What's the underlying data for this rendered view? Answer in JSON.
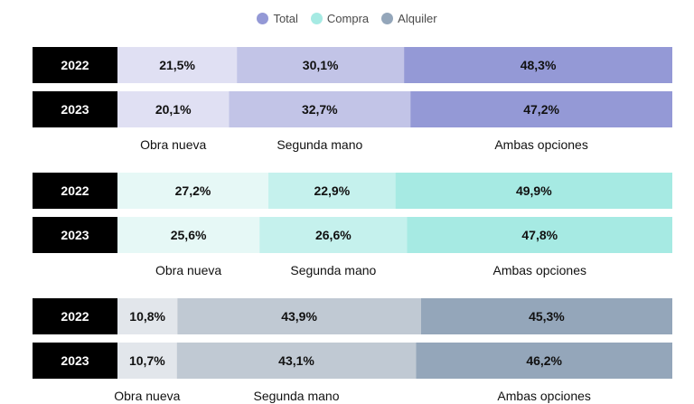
{
  "legend": [
    {
      "label": "Total",
      "color": "#9499d6"
    },
    {
      "label": "Compra",
      "color": "#a6eae3"
    },
    {
      "label": "Alquiler",
      "color": "#94a6ba"
    }
  ],
  "chart_data": [
    {
      "type": "bar",
      "stacked": true,
      "orientation": "horizontal",
      "group": "Total",
      "categories": [
        "2022",
        "2023"
      ],
      "series": [
        {
          "name": "Obra nueva",
          "values": [
            21.5,
            20.1
          ],
          "labels": [
            "21,5%",
            "20,1%"
          ],
          "color": "#e0e0f3"
        },
        {
          "name": "Segunda mano",
          "values": [
            30.1,
            32.7
          ],
          "labels": [
            "30,1%",
            "32,7%"
          ],
          "color": "#c2c4e7"
        },
        {
          "name": "Ambas opciones",
          "values": [
            48.3,
            47.2
          ],
          "labels": [
            "48,3%",
            "47,2%"
          ],
          "color": "#9499d6"
        }
      ]
    },
    {
      "type": "bar",
      "stacked": true,
      "orientation": "horizontal",
      "group": "Compra",
      "categories": [
        "2022",
        "2023"
      ],
      "series": [
        {
          "name": "Obra nueva",
          "values": [
            27.2,
            25.6
          ],
          "labels": [
            "27,2%",
            "25,6%"
          ],
          "color": "#e6f8f6"
        },
        {
          "name": "Segunda mano",
          "values": [
            22.9,
            26.6
          ],
          "labels": [
            "22,9%",
            "26,6%"
          ],
          "color": "#c5f1ed"
        },
        {
          "name": "Ambas opciones",
          "values": [
            49.9,
            47.8
          ],
          "labels": [
            "49,9%",
            "47,8%"
          ],
          "color": "#a6eae3"
        }
      ]
    },
    {
      "type": "bar",
      "stacked": true,
      "orientation": "horizontal",
      "group": "Alquiler",
      "categories": [
        "2022",
        "2023"
      ],
      "series": [
        {
          "name": "Obra nueva",
          "values": [
            10.8,
            10.7
          ],
          "labels": [
            "10,8%",
            "10,7%"
          ],
          "color": "#e2e6eb"
        },
        {
          "name": "Segunda mano",
          "values": [
            43.9,
            43.1
          ],
          "labels": [
            "43,9%",
            "43,1%"
          ],
          "color": "#c0c9d3"
        },
        {
          "name": "Ambas opciones",
          "values": [
            45.3,
            46.2
          ],
          "labels": [
            "45,3%",
            "46,2%"
          ],
          "color": "#94a6ba"
        }
      ]
    }
  ]
}
